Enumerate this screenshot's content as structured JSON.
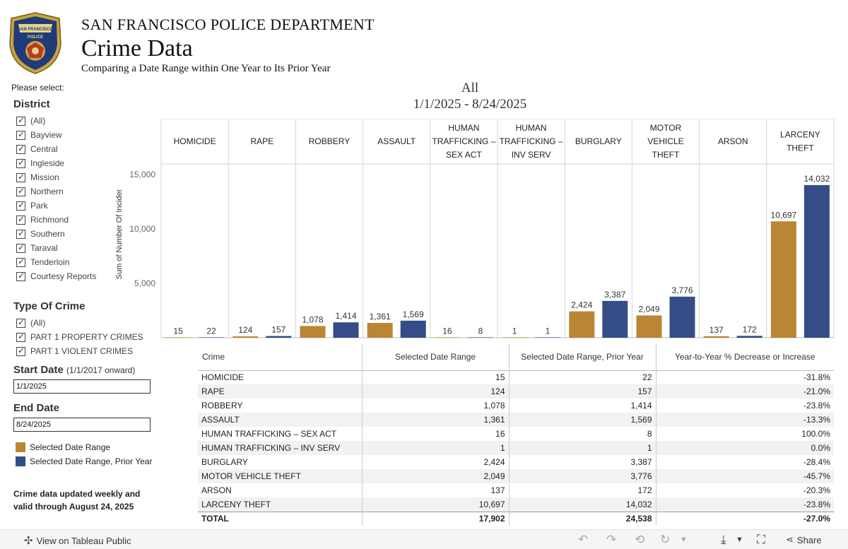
{
  "header": {
    "department": "SAN FRANCISCO POLICE DEPARTMENT",
    "title": "Crime Data",
    "subtitle": "Comparing a Date Range within One Year to Its Prior Year",
    "badge_text_top": "SAN FRANCISCO",
    "badge_text_mid": "POLICE"
  },
  "filters": {
    "prompt": "Please select:",
    "district": {
      "title": "District",
      "items": [
        "(All)",
        "Bayview",
        "Central",
        "Ingleside",
        "Mission",
        "Northern",
        "Park",
        "Richmond",
        "Southern",
        "Taraval",
        "Tenderloin",
        "Courtesy Reports"
      ]
    },
    "crime_type": {
      "title": "Type Of Crime",
      "items": [
        "(All)",
        "PART 1 PROPERTY CRIMES",
        "PART 1 VIOLENT CRIMES"
      ]
    },
    "start_date": {
      "title": "Start Date",
      "hint": "(1/1/2017 onward)",
      "value": "1/1/2025"
    },
    "end_date": {
      "title": "End Date",
      "value": "8/24/2025"
    }
  },
  "legend": [
    {
      "label": "Selected Date Range",
      "color": "#BA8633"
    },
    {
      "label": "Selected Date Range, Prior Year",
      "color": "#344D86"
    }
  ],
  "note": "Crime data updated weekly and valid through August 24, 2025",
  "chart_head": {
    "line1": "All",
    "line2": "1/1/2025  -  8/24/2025"
  },
  "chart_data": {
    "type": "bar",
    "categories": [
      "HOMICIDE",
      "RAPE",
      "ROBBERY",
      "ASSAULT",
      "HUMAN TRAFFICKING – SEX ACT",
      "HUMAN TRAFFICKING – INV SERV",
      "BURGLARY",
      "MOTOR VEHICLE THEFT",
      "ARSON",
      "LARCENY THEFT"
    ],
    "category_lines": [
      [
        "HOMICIDE"
      ],
      [
        "RAPE"
      ],
      [
        "ROBBERY"
      ],
      [
        "ASSAULT"
      ],
      [
        "HUMAN",
        "TRAFFICKING –",
        "SEX ACT"
      ],
      [
        "HUMAN",
        "TRAFFICKING –",
        "INV SERV"
      ],
      [
        "BURGLARY"
      ],
      [
        "MOTOR",
        "VEHICLE",
        "THEFT"
      ],
      [
        "ARSON"
      ],
      [
        "LARCENY",
        "THEFT"
      ]
    ],
    "series": [
      {
        "name": "Selected Date Range",
        "color": "#BA8633",
        "values": [
          15,
          124,
          1078,
          1361,
          16,
          1,
          2424,
          2049,
          137,
          10697
        ],
        "labels": [
          "15",
          "124",
          "1,078",
          "1,361",
          "16",
          "1",
          "2,424",
          "2,049",
          "137",
          "10,697"
        ]
      },
      {
        "name": "Selected Date Range, Prior Year",
        "color": "#344D86",
        "values": [
          22,
          157,
          1414,
          1569,
          8,
          1,
          3387,
          3776,
          172,
          14032
        ],
        "labels": [
          "22",
          "157",
          "1,414",
          "1,569",
          "8",
          "1",
          "3,387",
          "3,776",
          "172",
          "14,032"
        ]
      }
    ],
    "ylabel": "Sum of Number Of Incidents",
    "yticks": [
      5000,
      10000,
      15000
    ],
    "ytick_labels": [
      "5,000",
      "10,000",
      "15,000"
    ],
    "ylim": [
      0,
      15000
    ],
    "grid": false
  },
  "table": {
    "headers": [
      "Crime",
      "Selected Date Range",
      "Selected Date Range, Prior Year",
      "Year-to-Year % Decrease or Increase"
    ],
    "rows": [
      [
        "HOMICIDE",
        "15",
        "22",
        "-31.8%"
      ],
      [
        "RAPE",
        "124",
        "157",
        "-21.0%"
      ],
      [
        "ROBBERY",
        "1,078",
        "1,414",
        "-23.8%"
      ],
      [
        "ASSAULT",
        "1,361",
        "1,569",
        "-13.3%"
      ],
      [
        "HUMAN TRAFFICKING – SEX ACT",
        "16",
        "8",
        "100.0%"
      ],
      [
        "HUMAN TRAFFICKING – INV SERV",
        "1",
        "1",
        "0.0%"
      ],
      [
        "BURGLARY",
        "2,424",
        "3,387",
        "-28.4%"
      ],
      [
        "MOTOR VEHICLE THEFT",
        "2,049",
        "3,776",
        "-45.7%"
      ],
      [
        "ARSON",
        "137",
        "172",
        "-20.3%"
      ],
      [
        "LARCENY THEFT",
        "10,697",
        "14,032",
        "-23.8%"
      ]
    ],
    "total": [
      "TOTAL",
      "17,902",
      "24,538",
      "-27.0%"
    ]
  },
  "footer": {
    "view_link": "View on Tableau Public",
    "share": "Share"
  }
}
